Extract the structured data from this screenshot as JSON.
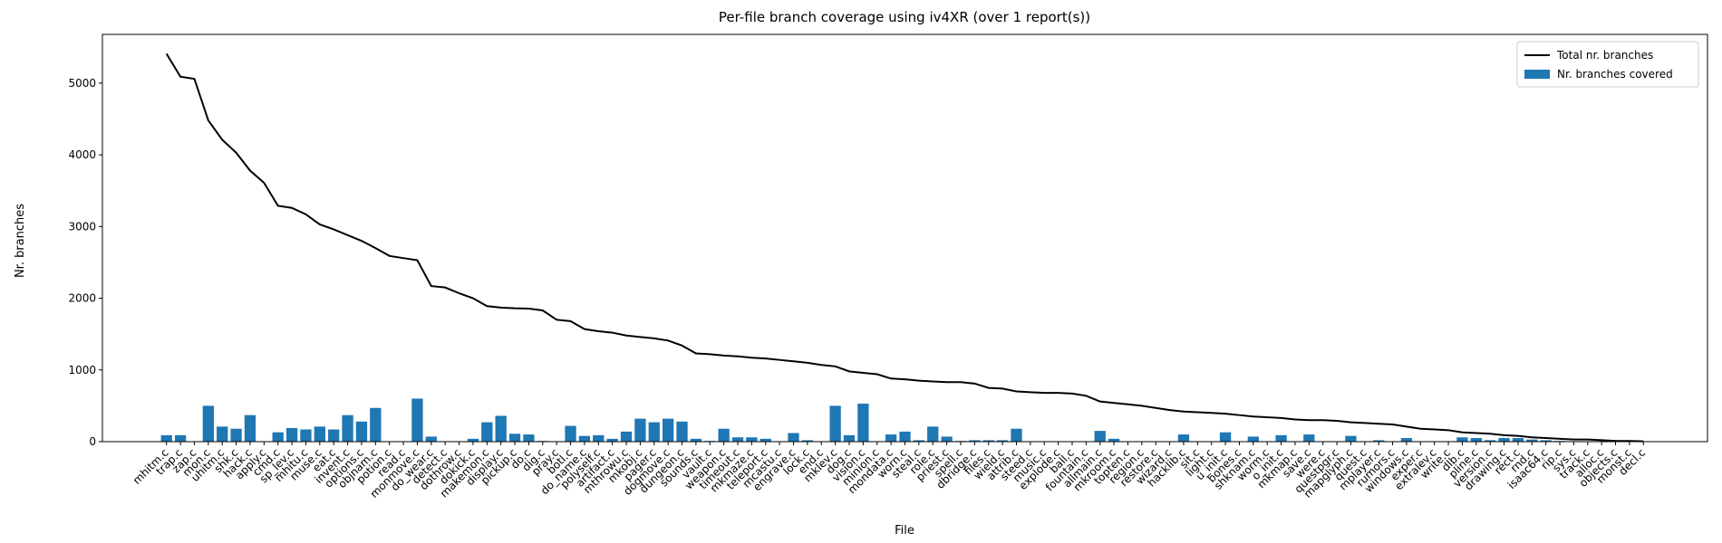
{
  "chart_data": {
    "type": "bar",
    "title": "Per-file branch coverage using iv4XR (over 1 report(s))",
    "x_label": "File",
    "y_label": "Nr. branches",
    "categories": [
      "mhitm.c",
      "trap.c",
      "zap.c",
      "mon.c",
      "uhitm.c",
      "shk.c",
      "hack.c",
      "apply.c",
      "cmd.c",
      "sp_lev.c",
      "mhitu.c",
      "muse.c",
      "eat.c",
      "invent.c",
      "options.c",
      "objnam.c",
      "potion.c",
      "read.c",
      "monmove.c",
      "do_wear.c",
      "detect.c",
      "dothrow.c",
      "dokick.c",
      "makemon.c",
      "display.c",
      "pickup.c",
      "do.c",
      "dig.c",
      "pray.c",
      "botl.c",
      "do_name.c",
      "polyself.c",
      "artifact.c",
      "mthrowu.c",
      "mkobj.c",
      "pager.c",
      "dogmove.c",
      "dungeon.c",
      "sounds.c",
      "vault.c",
      "weapon.c",
      "timeout.c",
      "mkmaze.c",
      "teleport.c",
      "mcastu.c",
      "engrave.c",
      "lock.c",
      "end.c",
      "mklev.c",
      "dog.c",
      "vision.c",
      "minion.c",
      "mondata.c",
      "worn.c",
      "steal.c",
      "role.c",
      "priest.c",
      "spell.c",
      "dbridge.c",
      "files.c",
      "wield.c",
      "attrib.c",
      "steed.c",
      "music.c",
      "explode.c",
      "ball.c",
      "fountain.c",
      "allmain.c",
      "mkroom.c",
      "topten.c",
      "region.c",
      "restore.c",
      "wizard.c",
      "hacklib.c",
      "sit.c",
      "light.c",
      "u_init.c",
      "bones.c",
      "shknam.c",
      "worm.c",
      "o_init.c",
      "mkmap.c",
      "save.c",
      "were.c",
      "questpgr.c",
      "mapglyph.c",
      "quest.c",
      "mplayer.c",
      "rumors.c",
      "windows.c",
      "exper.c",
      "extralev.c",
      "write.c",
      "dlb.c",
      "pline.c",
      "version.c",
      "drawing.c",
      "rect.c",
      "rnd.c",
      "isaac64.c",
      "rip.c",
      "sys.c",
      "track.c",
      "alloc.c",
      "objects.c",
      "monst.c",
      "decl.c"
    ],
    "series": [
      {
        "name": "Total nr. branches",
        "type": "line",
        "color": "#000000",
        "values": [
          5410,
          5090,
          5060,
          4480,
          4210,
          4030,
          3780,
          3610,
          3290,
          3260,
          3170,
          3030,
          2960,
          2880,
          2800,
          2700,
          2590,
          2560,
          2530,
          2170,
          2150,
          2070,
          2000,
          1890,
          1870,
          1860,
          1855,
          1830,
          1700,
          1680,
          1570,
          1540,
          1520,
          1480,
          1460,
          1440,
          1410,
          1340,
          1230,
          1220,
          1200,
          1190,
          1170,
          1160,
          1140,
          1120,
          1100,
          1070,
          1050,
          980,
          960,
          940,
          880,
          870,
          850,
          840,
          830,
          830,
          810,
          750,
          740,
          700,
          690,
          680,
          680,
          670,
          640,
          560,
          540,
          520,
          500,
          470,
          440,
          420,
          410,
          400,
          390,
          370,
          350,
          340,
          330,
          310,
          300,
          300,
          290,
          270,
          260,
          250,
          240,
          210,
          180,
          170,
          160,
          130,
          120,
          110,
          90,
          80,
          60,
          50,
          40,
          30,
          30,
          20,
          10,
          10,
          5
        ]
      },
      {
        "name": "Nr. branches covered",
        "type": "bar",
        "color": "#1f77b4",
        "values": [
          90,
          90,
          0,
          500,
          210,
          180,
          370,
          0,
          130,
          190,
          170,
          210,
          170,
          370,
          280,
          470,
          0,
          0,
          600,
          70,
          0,
          0,
          40,
          270,
          360,
          110,
          100,
          10,
          0,
          220,
          80,
          90,
          40,
          140,
          320,
          270,
          320,
          280,
          40,
          10,
          180,
          60,
          60,
          40,
          0,
          120,
          20,
          0,
          500,
          90,
          530,
          0,
          100,
          140,
          20,
          210,
          70,
          10,
          20,
          20,
          20,
          180,
          0,
          0,
          0,
          0,
          0,
          150,
          40,
          5,
          5,
          0,
          0,
          100,
          0,
          0,
          130,
          0,
          70,
          0,
          90,
          0,
          100,
          0,
          0,
          80,
          0,
          20,
          0,
          50,
          0,
          0,
          0,
          60,
          50,
          20,
          50,
          50,
          30,
          20,
          10,
          0,
          0,
          0,
          0,
          0,
          0
        ]
      }
    ],
    "ylim": [
      0,
      5680
    ],
    "yticks": [
      0,
      1000,
      2000,
      3000,
      4000,
      5000
    ],
    "legend": "upper right"
  }
}
